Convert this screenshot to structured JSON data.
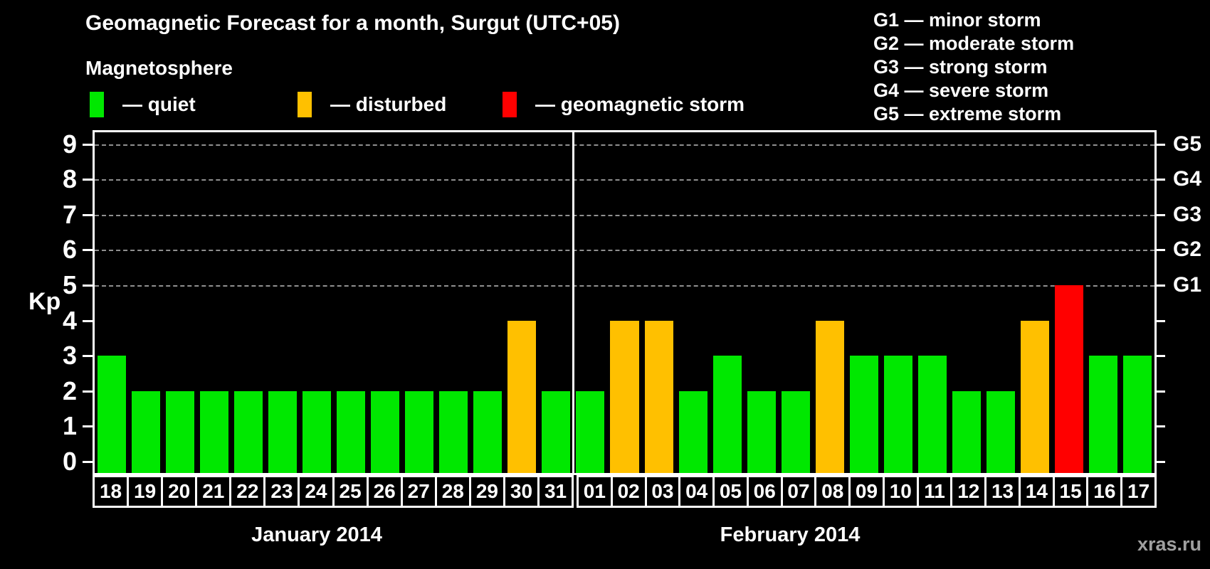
{
  "title": "Geomagnetic Forecast for a month, Surgut (UTC+05)",
  "watermark": "xras.ru",
  "magnetosphere_legend": {
    "title": "Magnetosphere",
    "items": [
      {
        "label": "— quiet",
        "status": "quiet"
      },
      {
        "label": "— disturbed",
        "status": "disturbed"
      },
      {
        "label": "— geomagnetic storm",
        "status": "storm"
      }
    ]
  },
  "g_scale_legend": [
    "G1 — minor storm",
    "G2 — moderate storm",
    "G3 — strong storm",
    "G4 — severe storm",
    "G5 — extreme storm"
  ],
  "colors": {
    "quiet": "#00e800",
    "disturbed": "#ffc000",
    "storm": "#ff0000",
    "background": "#000000",
    "axis": "#ffffff",
    "gridline": "#909090",
    "watermark": "#a0a0a0"
  },
  "chart_data": {
    "type": "bar",
    "title": "Geomagnetic Forecast for a month, Surgut (UTC+05)",
    "xlabel": "",
    "ylabel": "Kp",
    "ylim": [
      0,
      9
    ],
    "yticks": [
      0,
      1,
      2,
      3,
      4,
      5,
      6,
      7,
      8,
      9
    ],
    "gridlines_kp": [
      5,
      6,
      7,
      8,
      9
    ],
    "grid": "dashed horizontal at Kp 5-9 only",
    "legend_position": "top",
    "right_axis": [
      {
        "kp": 5,
        "label": "G1"
      },
      {
        "kp": 6,
        "label": "G2"
      },
      {
        "kp": 7,
        "label": "G3"
      },
      {
        "kp": 8,
        "label": "G4"
      },
      {
        "kp": 9,
        "label": "G5"
      }
    ],
    "months": [
      {
        "label": "January 2014",
        "days": [
          {
            "day": "18",
            "kp": 3,
            "status": "quiet"
          },
          {
            "day": "19",
            "kp": 2,
            "status": "quiet"
          },
          {
            "day": "20",
            "kp": 2,
            "status": "quiet"
          },
          {
            "day": "21",
            "kp": 2,
            "status": "quiet"
          },
          {
            "day": "22",
            "kp": 2,
            "status": "quiet"
          },
          {
            "day": "23",
            "kp": 2,
            "status": "quiet"
          },
          {
            "day": "24",
            "kp": 2,
            "status": "quiet"
          },
          {
            "day": "25",
            "kp": 2,
            "status": "quiet"
          },
          {
            "day": "26",
            "kp": 2,
            "status": "quiet"
          },
          {
            "day": "27",
            "kp": 2,
            "status": "quiet"
          },
          {
            "day": "28",
            "kp": 2,
            "status": "quiet"
          },
          {
            "day": "29",
            "kp": 2,
            "status": "quiet"
          },
          {
            "day": "30",
            "kp": 4,
            "status": "disturbed"
          },
          {
            "day": "31",
            "kp": 2,
            "status": "quiet"
          }
        ]
      },
      {
        "label": "February 2014",
        "days": [
          {
            "day": "01",
            "kp": 2,
            "status": "quiet"
          },
          {
            "day": "02",
            "kp": 4,
            "status": "disturbed"
          },
          {
            "day": "03",
            "kp": 4,
            "status": "disturbed"
          },
          {
            "day": "04",
            "kp": 2,
            "status": "quiet"
          },
          {
            "day": "05",
            "kp": 3,
            "status": "quiet"
          },
          {
            "day": "06",
            "kp": 2,
            "status": "quiet"
          },
          {
            "day": "07",
            "kp": 2,
            "status": "quiet"
          },
          {
            "day": "08",
            "kp": 4,
            "status": "disturbed"
          },
          {
            "day": "09",
            "kp": 3,
            "status": "quiet"
          },
          {
            "day": "10",
            "kp": 3,
            "status": "quiet"
          },
          {
            "day": "11",
            "kp": 3,
            "status": "quiet"
          },
          {
            "day": "12",
            "kp": 2,
            "status": "quiet"
          },
          {
            "day": "13",
            "kp": 2,
            "status": "quiet"
          },
          {
            "day": "14",
            "kp": 4,
            "status": "disturbed"
          },
          {
            "day": "15",
            "kp": 5,
            "status": "storm"
          },
          {
            "day": "16",
            "kp": 3,
            "status": "quiet"
          },
          {
            "day": "17",
            "kp": 3,
            "status": "quiet"
          }
        ]
      }
    ]
  }
}
